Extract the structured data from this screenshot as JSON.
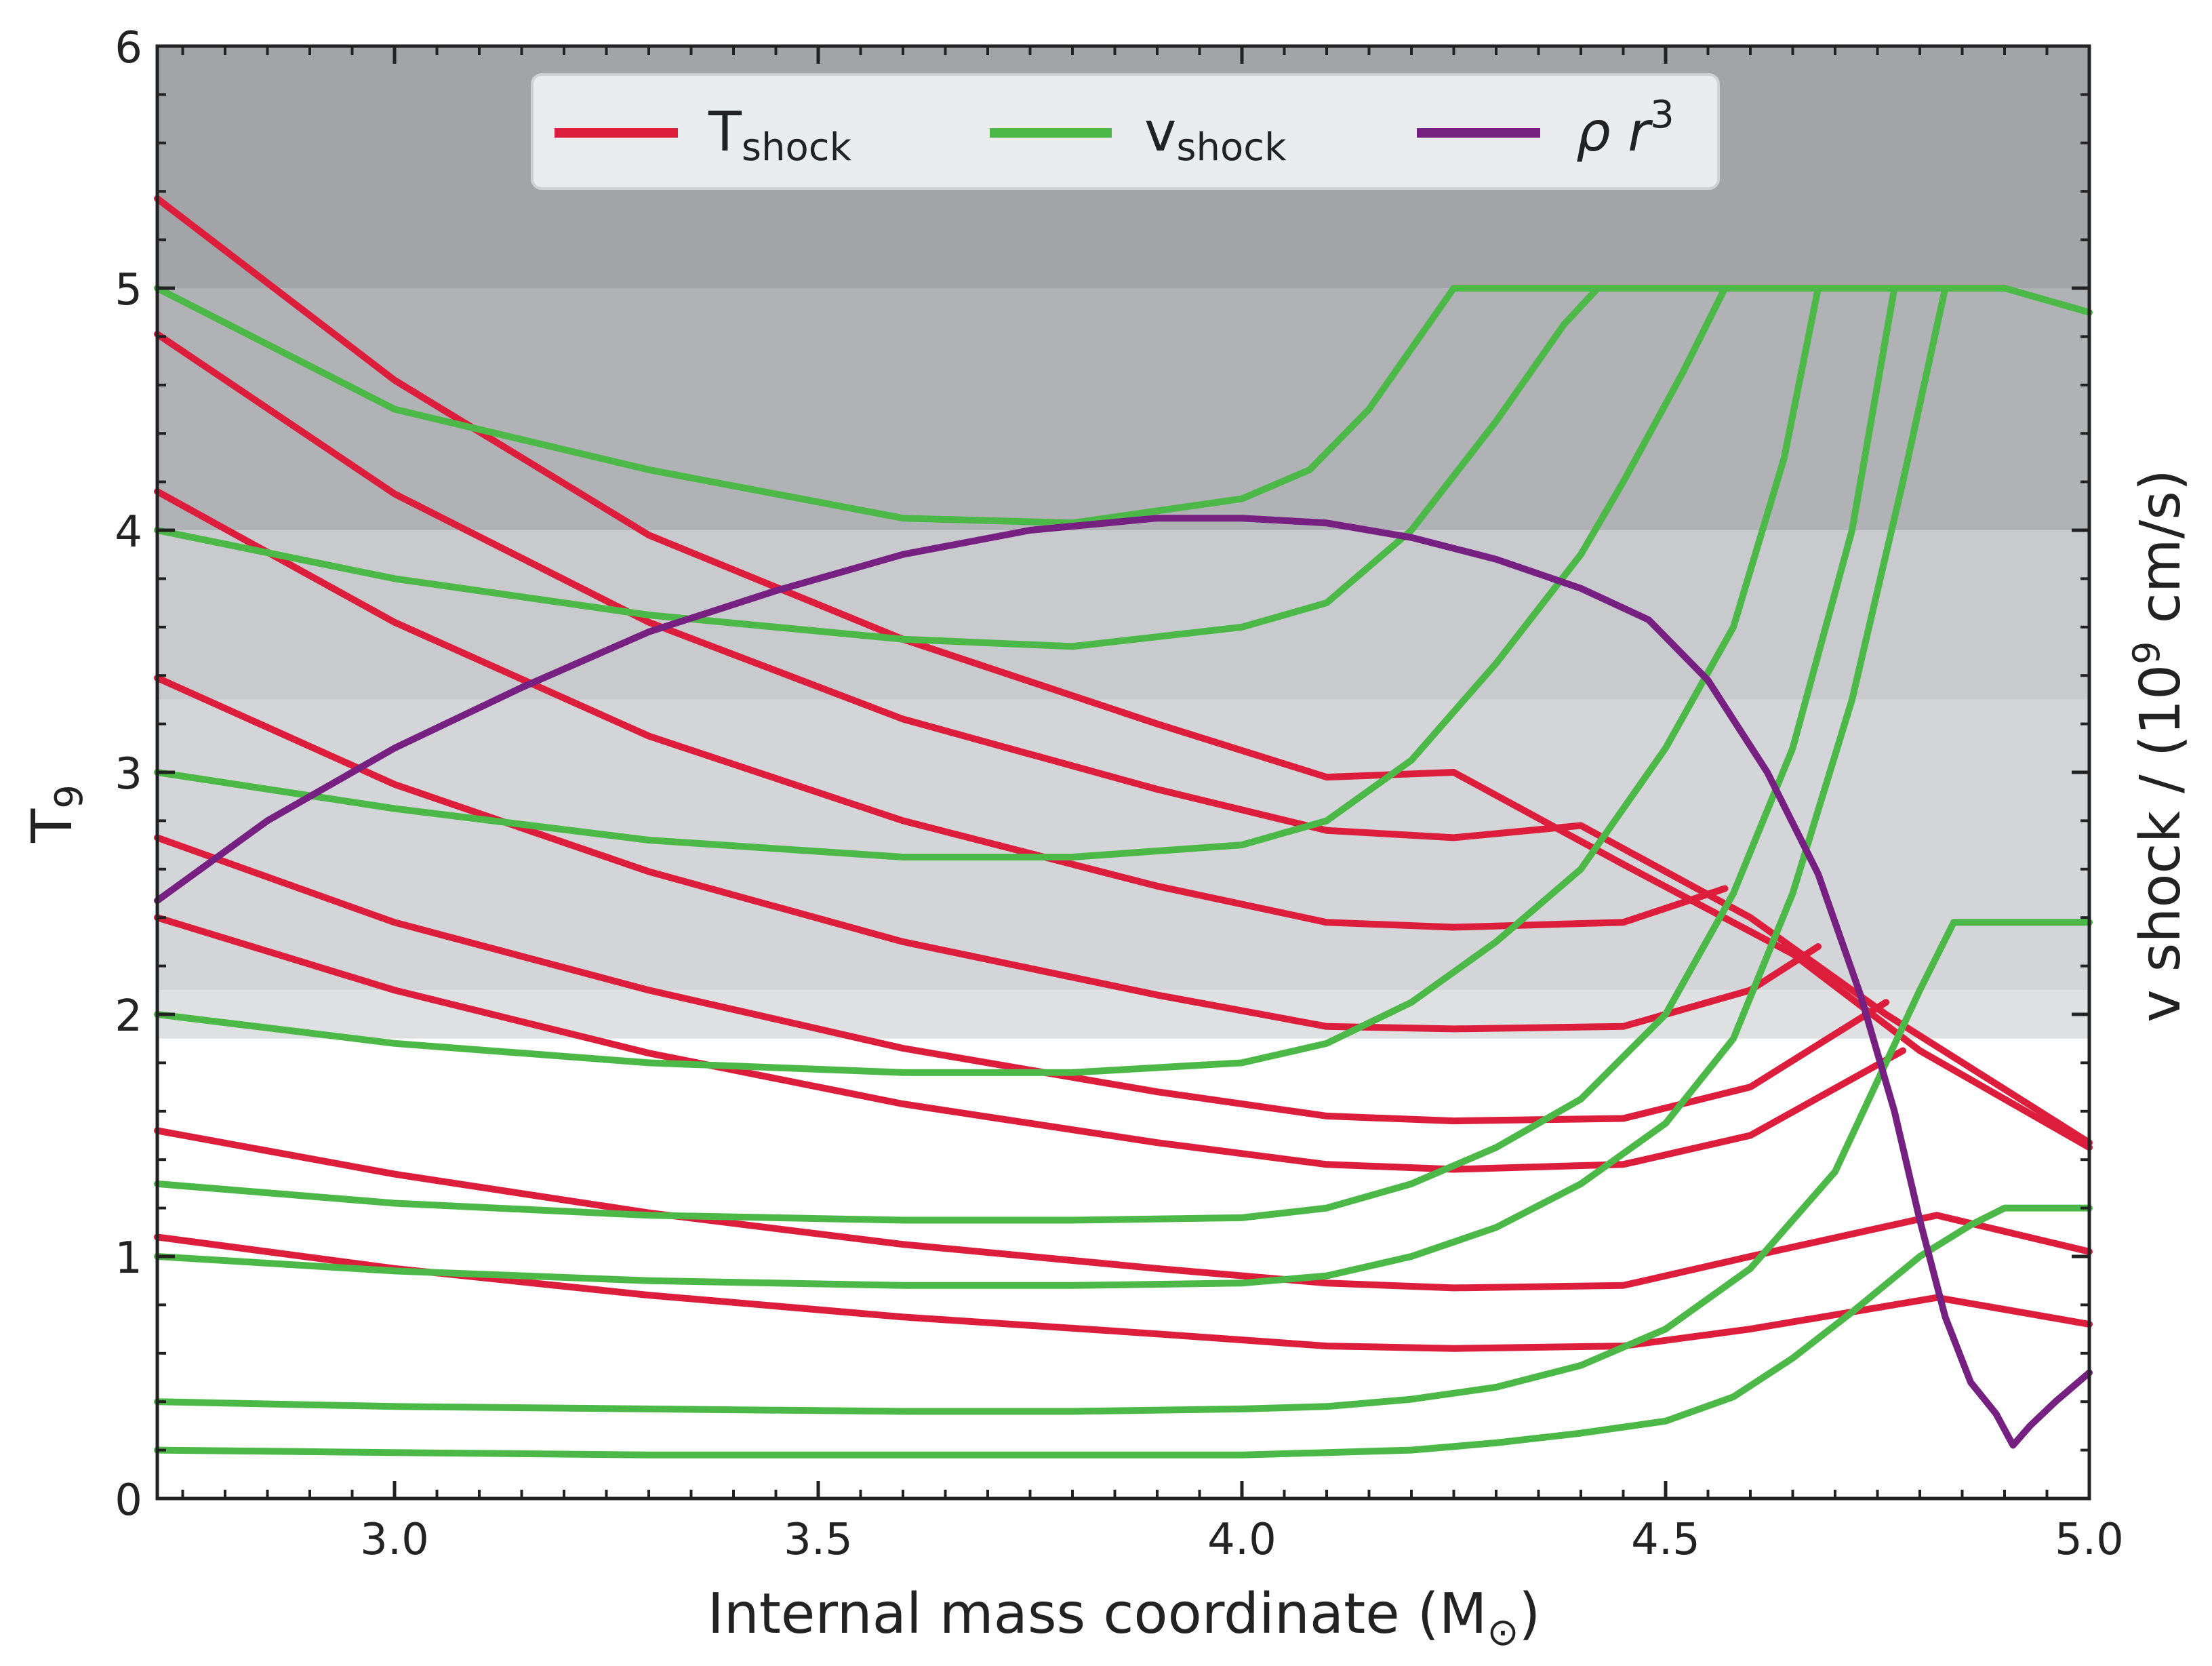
{
  "chart_data": {
    "type": "line",
    "xlabel": "Internal mass coordinate (M",
    "xlabel_symbol": "⊙",
    "xlabel_close": ")",
    "ylabel": "T",
    "ylabel_sub": "9",
    "y2label_pre": "v shock / (10",
    "y2label_sup": "9",
    "y2label_post": " cm/s)",
    "xlim": [
      2.72,
      5.0
    ],
    "ylim": [
      0,
      6
    ],
    "x_ticks": [
      3.0,
      3.5,
      4.0,
      4.5,
      5.0
    ],
    "x_tick_labels": [
      "3.0",
      "3.5",
      "4.0",
      "4.5",
      "5.0"
    ],
    "y_ticks": [
      0,
      1,
      2,
      3,
      4,
      5,
      6
    ],
    "y_tick_labels": [
      "0",
      "1",
      "2",
      "3",
      "4",
      "5",
      "6"
    ],
    "bands": [
      {
        "y0": 5.0,
        "y1": 6.0,
        "color": "#a3a4a7"
      },
      {
        "y0": 4.0,
        "y1": 5.0,
        "color": "#b1b2b6"
      },
      {
        "y0": 3.3,
        "y1": 4.0,
        "color": "#c9cacd"
      },
      {
        "y0": 2.1,
        "y1": 3.3,
        "color": "#d4d5d8"
      },
      {
        "y0": 1.9,
        "y1": 2.1,
        "color": "#dfe0e2"
      }
    ],
    "colors": {
      "T_shock": "#dc1e3c",
      "v_shock": "#4cb848",
      "rho_r3": "#762081"
    },
    "legend": [
      {
        "label": "T",
        "sub": "shock",
        "key": "T_shock"
      },
      {
        "label": "v",
        "sub": "shock",
        "key": "v_shock"
      },
      {
        "label": "ρ r",
        "sup": "3",
        "key": "rho_r3"
      }
    ],
    "series": [
      {
        "name": "T_shock",
        "x": [
          2.72,
          3.0,
          3.3,
          3.6,
          3.9,
          4.1,
          4.25,
          4.45,
          4.65,
          4.8,
          5.0
        ],
        "y": [
          5.37,
          4.62,
          3.98,
          3.55,
          3.2,
          2.98,
          3.0,
          2.62,
          2.25,
          1.85,
          1.45
        ]
      },
      {
        "name": "T_shock",
        "x": [
          2.72,
          3.0,
          3.3,
          3.6,
          3.9,
          4.1,
          4.25,
          4.4,
          4.6,
          4.76,
          5.0
        ],
        "y": [
          4.81,
          4.15,
          3.62,
          3.22,
          2.93,
          2.76,
          2.73,
          2.78,
          2.4,
          2.0,
          1.47
        ]
      },
      {
        "name": "T_shock",
        "x": [
          2.72,
          3.0,
          3.3,
          3.6,
          3.9,
          4.1,
          4.25,
          4.45,
          4.57
        ],
        "y": [
          4.16,
          3.62,
          3.15,
          2.8,
          2.53,
          2.38,
          2.36,
          2.38,
          2.52
        ]
      },
      {
        "name": "T_shock",
        "x": [
          2.72,
          3.0,
          3.3,
          3.6,
          3.9,
          4.1,
          4.25,
          4.45,
          4.6,
          4.68
        ],
        "y": [
          3.39,
          2.95,
          2.59,
          2.3,
          2.08,
          1.95,
          1.94,
          1.95,
          2.1,
          2.28
        ]
      },
      {
        "name": "T_shock",
        "x": [
          2.72,
          3.0,
          3.3,
          3.6,
          3.9,
          4.1,
          4.25,
          4.45,
          4.6,
          4.76
        ],
        "y": [
          2.73,
          2.38,
          2.1,
          1.86,
          1.68,
          1.58,
          1.56,
          1.57,
          1.7,
          2.05
        ]
      },
      {
        "name": "T_shock",
        "x": [
          2.72,
          3.0,
          3.3,
          3.6,
          3.9,
          4.1,
          4.25,
          4.45,
          4.6,
          4.78
        ],
        "y": [
          2.4,
          2.1,
          1.84,
          1.63,
          1.47,
          1.38,
          1.36,
          1.38,
          1.5,
          1.85
        ]
      },
      {
        "name": "T_shock",
        "x": [
          2.72,
          3.0,
          3.3,
          3.6,
          3.9,
          4.1,
          4.25,
          4.45,
          4.6,
          4.82,
          5.0
        ],
        "y": [
          1.52,
          1.34,
          1.18,
          1.05,
          0.95,
          0.89,
          0.87,
          0.88,
          1.0,
          1.17,
          1.02
        ]
      },
      {
        "name": "T_shock",
        "x": [
          2.72,
          3.0,
          3.3,
          3.6,
          3.9,
          4.1,
          4.25,
          4.45,
          4.6,
          4.82,
          5.0
        ],
        "y": [
          1.08,
          0.95,
          0.84,
          0.75,
          0.68,
          0.63,
          0.62,
          0.63,
          0.7,
          0.83,
          0.72
        ]
      },
      {
        "name": "v_shock",
        "x": [
          2.72,
          3.0,
          3.3,
          3.6,
          3.8,
          4.0,
          4.08,
          4.15,
          4.25,
          4.35,
          4.45,
          4.5,
          4.58,
          4.65,
          4.72,
          4.77,
          4.83,
          4.9,
          4.95,
          5.0
        ],
        "y": [
          5.0,
          4.5,
          4.25,
          4.05,
          4.03,
          4.13,
          4.25,
          4.5,
          5.0,
          5.0,
          5.0,
          5.0,
          5.0,
          5.0,
          5.0,
          5.0,
          5.0,
          5.0,
          4.95,
          4.9
        ]
      },
      {
        "name": "v_shock",
        "x": [
          2.72,
          3.0,
          3.3,
          3.6,
          3.8,
          4.0,
          4.1,
          4.2,
          4.3,
          4.38,
          4.42
        ],
        "y": [
          4.0,
          3.8,
          3.65,
          3.55,
          3.52,
          3.6,
          3.7,
          4.0,
          4.45,
          4.85,
          5.0
        ]
      },
      {
        "name": "v_shock",
        "x": [
          2.72,
          3.0,
          3.3,
          3.6,
          3.8,
          4.0,
          4.1,
          4.2,
          4.3,
          4.4,
          4.45,
          4.52,
          4.57
        ],
        "y": [
          3.0,
          2.85,
          2.72,
          2.65,
          2.65,
          2.7,
          2.8,
          3.05,
          3.45,
          3.9,
          4.2,
          4.65,
          5.0
        ]
      },
      {
        "name": "v_shock",
        "x": [
          2.72,
          3.0,
          3.3,
          3.6,
          3.8,
          4.0,
          4.1,
          4.2,
          4.3,
          4.4,
          4.5,
          4.58,
          4.64,
          4.68
        ],
        "y": [
          2.0,
          1.88,
          1.8,
          1.76,
          1.76,
          1.8,
          1.88,
          2.05,
          2.3,
          2.6,
          3.1,
          3.6,
          4.3,
          5.0
        ]
      },
      {
        "name": "v_shock",
        "x": [
          2.72,
          3.0,
          3.3,
          3.6,
          3.8,
          4.0,
          4.1,
          4.2,
          4.3,
          4.4,
          4.5,
          4.58,
          4.65,
          4.72,
          4.77
        ],
        "y": [
          1.3,
          1.22,
          1.17,
          1.15,
          1.15,
          1.16,
          1.2,
          1.3,
          1.45,
          1.65,
          2.0,
          2.5,
          3.1,
          4.0,
          5.0
        ]
      },
      {
        "name": "v_shock",
        "x": [
          2.72,
          3.0,
          3.3,
          3.6,
          3.8,
          4.0,
          4.1,
          4.2,
          4.3,
          4.4,
          4.5,
          4.58,
          4.65,
          4.72,
          4.78,
          4.83
        ],
        "y": [
          1.0,
          0.94,
          0.9,
          0.88,
          0.88,
          0.89,
          0.92,
          1.0,
          1.12,
          1.3,
          1.55,
          1.9,
          2.5,
          3.3,
          4.2,
          5.0
        ]
      },
      {
        "name": "v_shock",
        "x": [
          2.72,
          3.0,
          3.3,
          3.6,
          3.8,
          4.0,
          4.1,
          4.2,
          4.3,
          4.4,
          4.5,
          4.6,
          4.7,
          4.76,
          4.8,
          4.84,
          4.9,
          5.0
        ],
        "y": [
          0.4,
          0.38,
          0.37,
          0.36,
          0.36,
          0.37,
          0.38,
          0.41,
          0.46,
          0.55,
          0.7,
          0.95,
          1.35,
          1.8,
          2.1,
          2.38,
          2.38,
          2.38
        ]
      },
      {
        "name": "v_shock",
        "x": [
          2.72,
          3.0,
          3.3,
          3.6,
          3.8,
          4.0,
          4.1,
          4.2,
          4.3,
          4.4,
          4.5,
          4.58,
          4.65,
          4.72,
          4.8,
          4.86,
          4.9,
          5.0
        ],
        "y": [
          0.2,
          0.19,
          0.18,
          0.18,
          0.18,
          0.18,
          0.19,
          0.2,
          0.23,
          0.27,
          0.32,
          0.42,
          0.58,
          0.77,
          1.0,
          1.13,
          1.2,
          1.2
        ]
      },
      {
        "name": "rho_r3",
        "x": [
          2.72,
          2.85,
          3.0,
          3.15,
          3.3,
          3.45,
          3.6,
          3.75,
          3.9,
          4.0,
          4.1,
          4.2,
          4.3,
          4.4,
          4.48,
          4.55,
          4.62,
          4.68,
          4.73,
          4.77,
          4.8,
          4.83,
          4.86,
          4.89,
          4.91,
          4.93,
          4.96,
          5.0
        ],
        "y": [
          2.47,
          2.8,
          3.1,
          3.35,
          3.58,
          3.75,
          3.9,
          4.0,
          4.05,
          4.05,
          4.03,
          3.97,
          3.88,
          3.76,
          3.63,
          3.38,
          3.0,
          2.58,
          2.08,
          1.6,
          1.15,
          0.75,
          0.48,
          0.35,
          0.22,
          0.3,
          0.4,
          0.52
        ]
      }
    ]
  }
}
